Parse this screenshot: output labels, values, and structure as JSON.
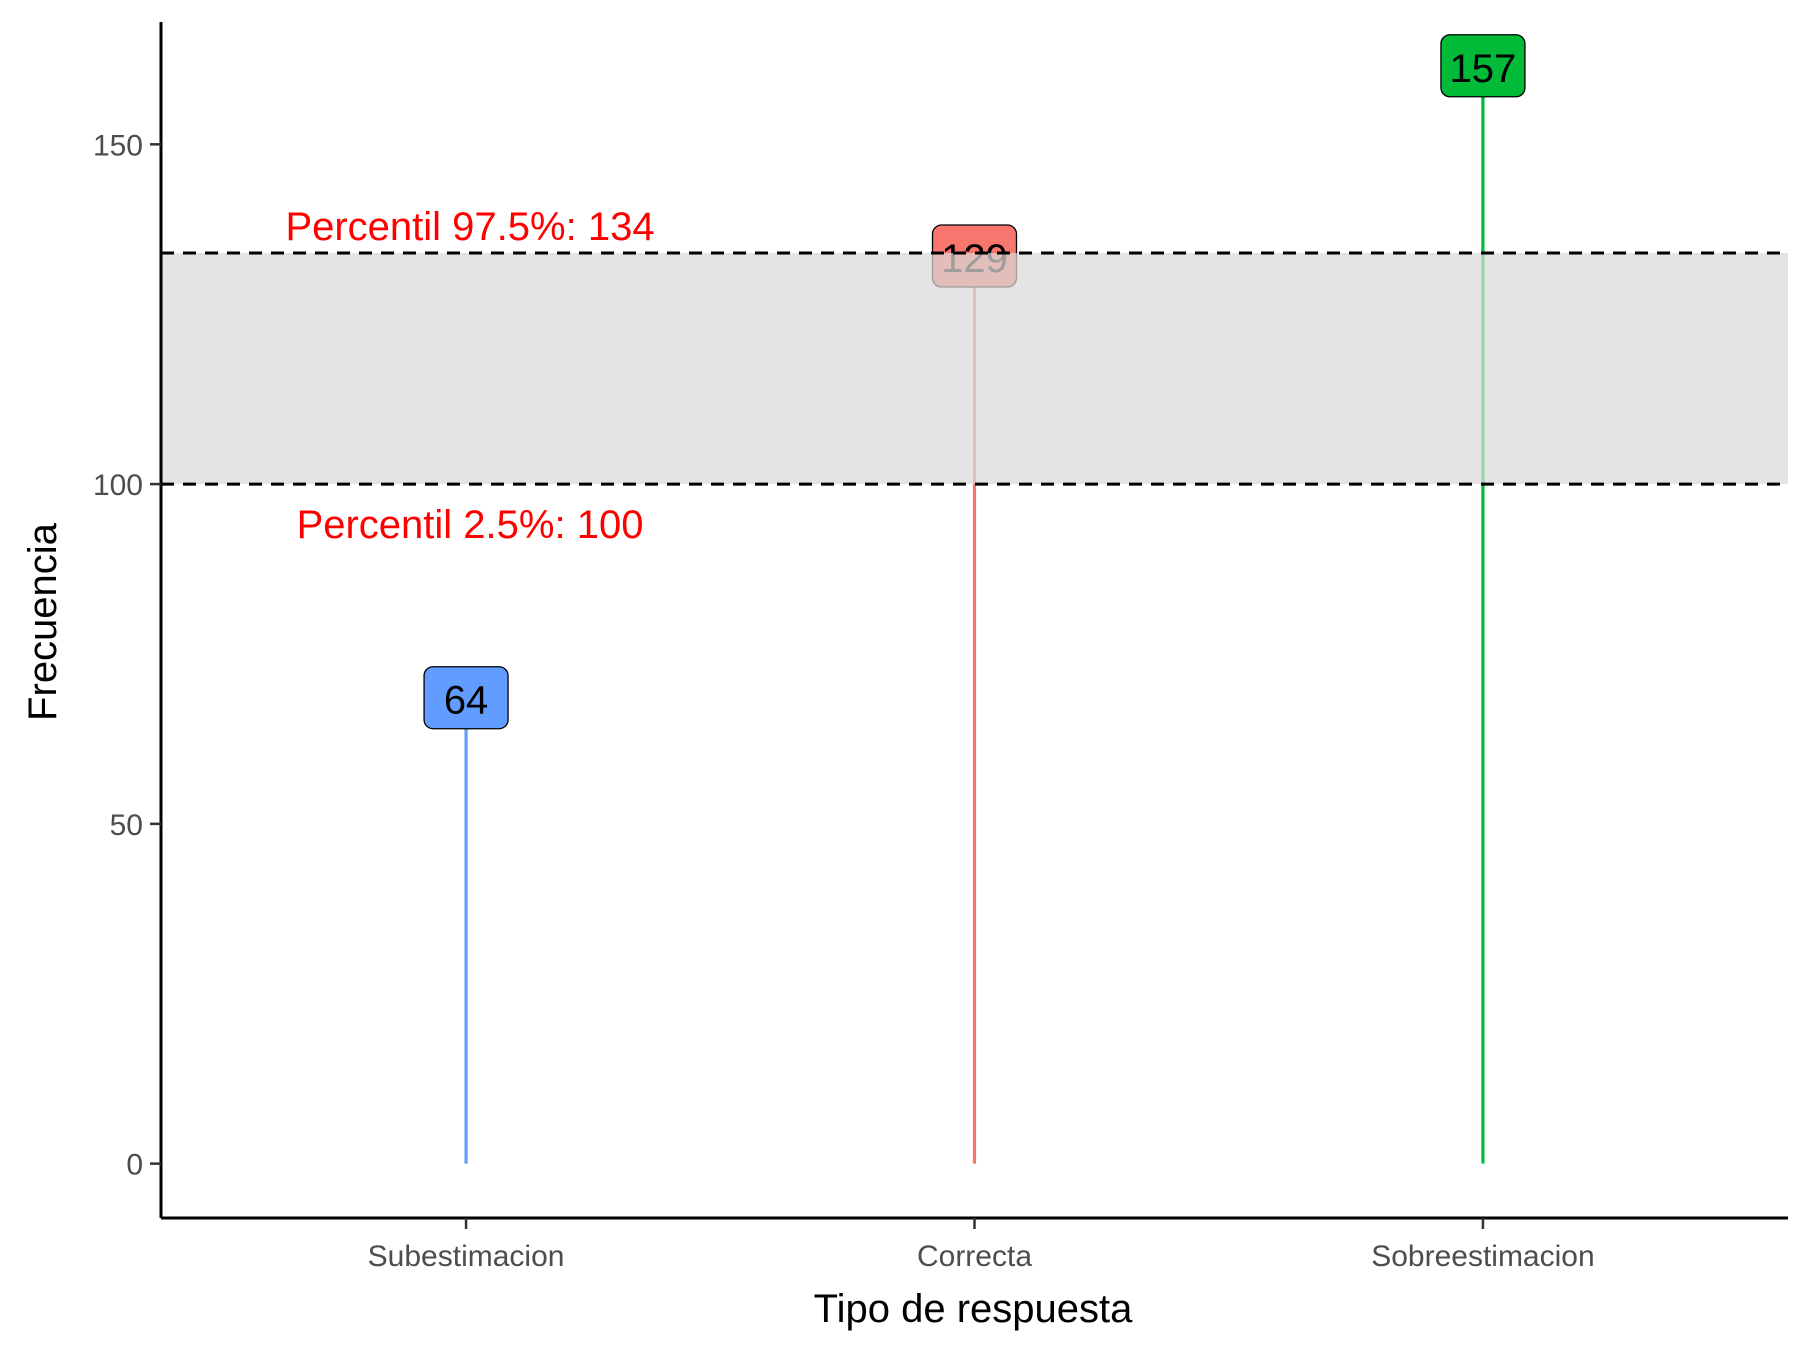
{
  "chart_data": {
    "type": "lollipop",
    "title": "",
    "xlabel": "Tipo de respuesta",
    "ylabel": "Frecuencia",
    "categories": [
      "Subestimacion",
      "Correcta",
      "Sobreestimacion"
    ],
    "values": [
      64,
      129,
      157
    ],
    "colors": [
      "#619CFF",
      "#F8766D",
      "#00BA38"
    ],
    "ylim": [
      -8,
      168
    ],
    "yticks": [
      0,
      50,
      100,
      150
    ],
    "band": {
      "lower": 100,
      "upper": 134,
      "color": "#d9d9d9"
    },
    "annotations": {
      "upper": "Percentil 97.5%: 134",
      "lower": "Percentil 2.5%: 100"
    },
    "grid": false,
    "legend": "none"
  }
}
